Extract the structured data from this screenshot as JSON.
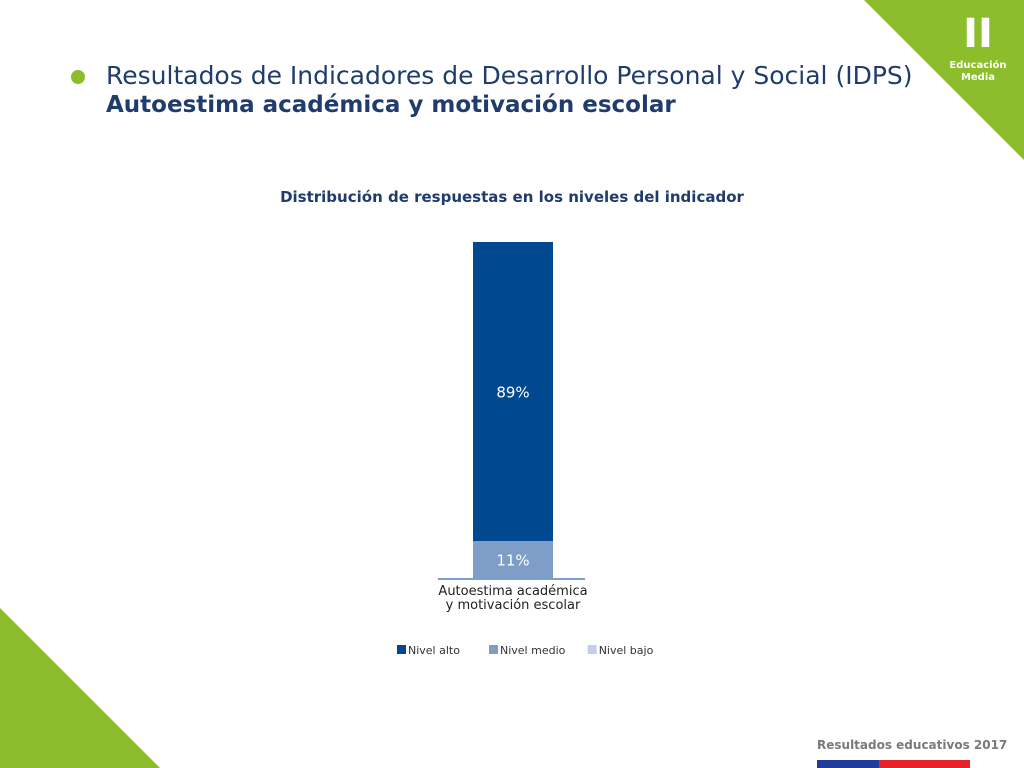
{
  "badge": {
    "numeral": "II",
    "line1": "Educación",
    "line2": "Media"
  },
  "header": {
    "title": "Resultados de Indicadores de Desarrollo Personal y Social (IDPS)",
    "subtitle": "Autoestima académica y motivación escolar"
  },
  "colors": {
    "accent_green": "#8cbd2a",
    "nivel_alto": "#004990",
    "nivel_medio": "#7f9ec7",
    "nivel_bajo": "#c3cfe6",
    "title_navy": "#1f3c6d"
  },
  "chart_data": {
    "type": "bar",
    "stacked": true,
    "title": "Distribución de respuestas en los niveles del indicador",
    "categories": [
      "Autoestima académica y motivación escolar"
    ],
    "category_lines": [
      "Autoestima académica",
      "y motivación escolar"
    ],
    "series": [
      {
        "name": "Nivel alto",
        "values": [
          89
        ],
        "label": "89%",
        "color": "#004990"
      },
      {
        "name": "Nivel medio",
        "values": [
          11
        ],
        "label": "11%",
        "color": "#7f9ec7"
      },
      {
        "name": "Nivel bajo",
        "values": [
          0
        ],
        "label": "",
        "color": "#c3cfe6"
      }
    ],
    "ylim": [
      0,
      100
    ],
    "xlabel": "",
    "ylabel": "",
    "grid": false,
    "legend": "bottom"
  },
  "footer": {
    "text": "Resultados educativos 2017"
  }
}
